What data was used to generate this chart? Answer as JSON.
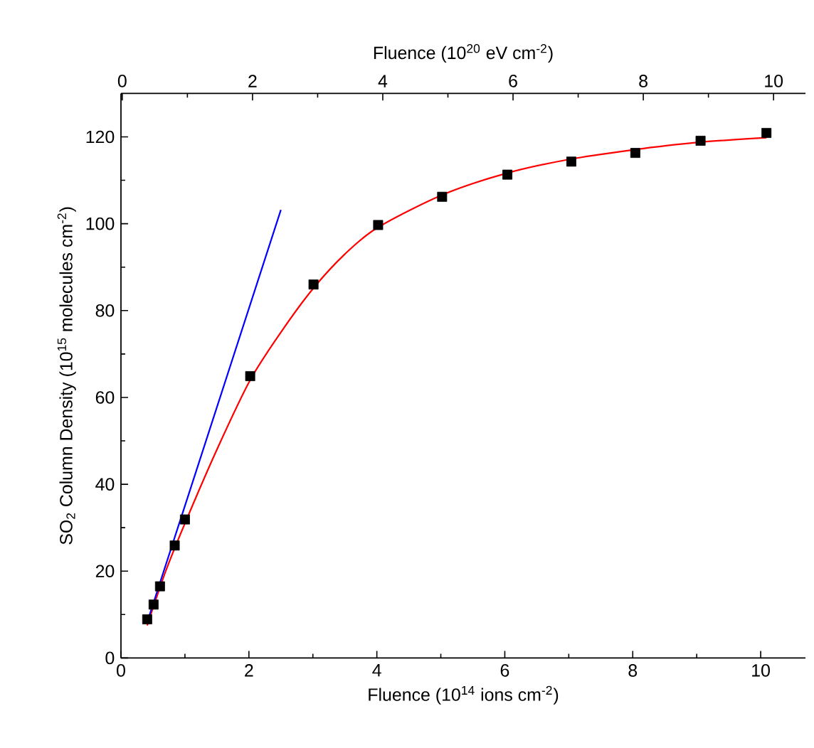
{
  "chart_data": {
    "type": "scatter",
    "xlabel": "Fluence (10$^{14}$ ions cm$^{-2}$)",
    "x2label": "Fluence (10$^{20}$ eV cm$^{-2}$)",
    "ylabel": "SO$_{2}$ Column Density (10$^{15}$ molecules cm$^{-2}$)",
    "xlim": [
      0,
      10.7
    ],
    "xticks": [
      0,
      2,
      4,
      6,
      8,
      10
    ],
    "x2lim": [
      -0.02,
      10.49
    ],
    "x2ticks": [
      0,
      2,
      4,
      6,
      8,
      10
    ],
    "ylim": [
      0,
      130
    ],
    "yticks": [
      0,
      20,
      40,
      60,
      80,
      100,
      120
    ],
    "grid": false,
    "legend": false,
    "series": [
      {
        "color": "#000000",
        "marker": "square",
        "x": [
          0.41,
          0.51,
          0.61,
          0.84,
          1.0,
          2.02,
          3.01,
          4.02,
          5.02,
          6.04,
          7.04,
          8.04,
          9.06,
          10.09
        ],
        "values": [
          8.9,
          12.3,
          16.5,
          25.9,
          31.9,
          64.9,
          86.0,
          99.7,
          106.2,
          111.3,
          114.3,
          116.3,
          119.1,
          120.9
        ]
      },
      {
        "type": "line",
        "color": "#ff0000",
        "marker": "none",
        "line_style": "solid",
        "x": [
          0.41,
          0.7,
          1.0,
          1.5,
          2.02,
          2.5,
          3.0,
          3.5,
          4.0,
          5.0,
          6.0,
          7.0,
          8.0,
          9.0,
          10.09
        ],
        "values": [
          7.5,
          20,
          31,
          48,
          64,
          75,
          85,
          93,
          99,
          106.5,
          111.5,
          114.8,
          117,
          118.7,
          119.8
        ]
      },
      {
        "type": "line",
        "color": "#0000ff",
        "marker": "none",
        "line_style": "solid",
        "x": [
          0.44,
          2.5
        ],
        "values": [
          9.6,
          103.2
        ]
      }
    ]
  }
}
